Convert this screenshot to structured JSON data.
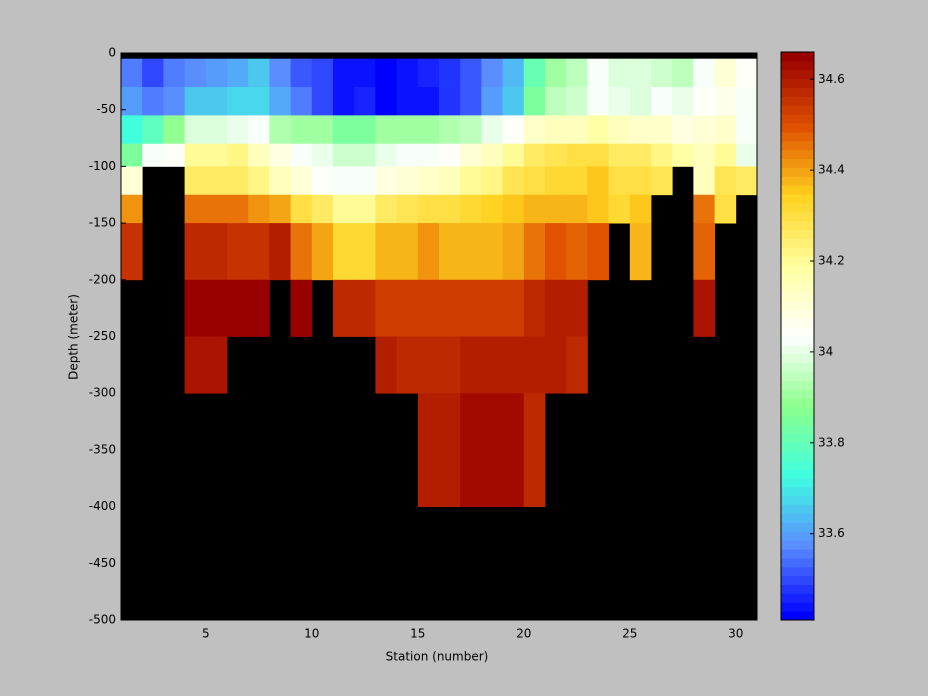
{
  "chart_data": {
    "type": "heatmap",
    "xlabel": "Station (number)",
    "ylabel": "Depth (meter)",
    "xedges": [
      1,
      2,
      3,
      4,
      5,
      6,
      7,
      8,
      9,
      10,
      11,
      12,
      13,
      14,
      15,
      16,
      17,
      18,
      19,
      20,
      21,
      22,
      23,
      24,
      25,
      26,
      27,
      28,
      29,
      30,
      31
    ],
    "yedges": [
      0,
      -5,
      -30,
      -55,
      -80,
      -100,
      -125,
      -150,
      -200,
      -250,
      -300,
      -400,
      -500
    ],
    "z": [
      [
        null,
        null,
        null,
        null,
        null,
        null,
        null,
        null,
        null,
        null,
        null,
        null,
        null,
        null,
        null,
        null,
        null,
        null,
        null,
        null,
        null,
        null,
        null,
        null,
        null,
        null,
        null,
        null,
        null,
        null
      ],
      [
        33.55,
        33.5,
        33.55,
        33.58,
        33.6,
        33.62,
        33.65,
        33.58,
        33.52,
        33.5,
        33.44,
        33.44,
        33.42,
        33.43,
        33.45,
        33.48,
        33.52,
        33.58,
        33.64,
        33.82,
        33.9,
        33.95,
        34.02,
        33.98,
        33.98,
        33.96,
        33.94,
        34.02,
        34.1,
        34.05
      ],
      [
        33.6,
        33.55,
        33.58,
        33.65,
        33.65,
        33.68,
        33.68,
        33.62,
        33.55,
        33.5,
        33.44,
        33.45,
        33.42,
        33.43,
        33.44,
        33.48,
        33.52,
        33.6,
        33.66,
        33.85,
        33.95,
        33.96,
        34.02,
        34.0,
        33.98,
        34.02,
        34.0,
        34.05,
        34.06,
        34.02
      ],
      [
        33.74,
        33.8,
        33.88,
        33.98,
        33.98,
        34.0,
        34.02,
        33.93,
        33.9,
        33.9,
        33.85,
        33.85,
        33.9,
        33.9,
        33.9,
        33.92,
        33.95,
        34.0,
        34.05,
        34.12,
        34.15,
        34.15,
        34.18,
        34.15,
        34.12,
        34.12,
        34.08,
        34.1,
        34.12,
        34.02
      ],
      [
        33.85,
        34.02,
        34.05,
        34.2,
        34.2,
        34.22,
        34.15,
        34.08,
        34.02,
        34.0,
        33.96,
        33.96,
        34.0,
        34.02,
        34.02,
        34.05,
        34.1,
        34.15,
        34.2,
        34.25,
        34.28,
        34.3,
        34.3,
        34.25,
        34.25,
        34.22,
        34.18,
        34.15,
        34.2,
        34.0
      ],
      [
        34.1,
        null,
        null,
        34.25,
        34.25,
        34.25,
        34.22,
        34.15,
        34.1,
        34.05,
        34.02,
        34.02,
        34.08,
        34.1,
        34.12,
        34.15,
        34.2,
        34.22,
        34.28,
        34.3,
        34.32,
        34.32,
        34.35,
        34.3,
        34.3,
        34.28,
        null,
        34.15,
        34.28,
        34.25
      ],
      [
        34.42,
        null,
        null,
        34.45,
        34.45,
        34.45,
        34.42,
        34.4,
        34.3,
        34.25,
        34.2,
        34.2,
        34.25,
        34.28,
        34.3,
        34.3,
        34.32,
        34.33,
        34.35,
        34.38,
        34.38,
        34.38,
        34.35,
        34.32,
        34.35,
        null,
        null,
        34.45,
        34.3,
        null
      ],
      [
        34.56,
        null,
        null,
        34.57,
        34.57,
        34.55,
        34.55,
        34.6,
        34.45,
        34.4,
        34.32,
        34.32,
        34.38,
        34.38,
        34.42,
        34.38,
        34.38,
        34.38,
        34.4,
        34.45,
        34.5,
        34.48,
        34.5,
        null,
        34.38,
        null,
        null,
        34.48,
        null,
        null
      ],
      [
        null,
        null,
        null,
        34.65,
        34.65,
        34.65,
        34.65,
        null,
        34.65,
        null,
        34.57,
        34.57,
        34.53,
        34.53,
        34.53,
        34.53,
        34.53,
        34.53,
        34.53,
        34.57,
        34.6,
        34.6,
        null,
        null,
        null,
        null,
        null,
        34.62,
        null,
        null
      ],
      [
        null,
        null,
        null,
        34.62,
        34.62,
        null,
        null,
        null,
        null,
        null,
        null,
        null,
        34.6,
        34.57,
        34.57,
        34.57,
        34.6,
        34.6,
        34.6,
        34.6,
        34.6,
        34.57,
        null,
        null,
        null,
        null,
        null,
        null,
        null,
        null
      ],
      [
        null,
        null,
        null,
        null,
        null,
        null,
        null,
        null,
        null,
        null,
        null,
        null,
        null,
        null,
        34.6,
        34.6,
        34.63,
        34.63,
        34.63,
        34.57,
        null,
        null,
        null,
        null,
        null,
        null,
        null,
        null,
        null,
        null
      ],
      [
        null,
        null,
        null,
        null,
        null,
        null,
        null,
        null,
        null,
        null,
        null,
        null,
        null,
        null,
        null,
        null,
        null,
        null,
        null,
        null,
        null,
        null,
        null,
        null,
        null,
        null,
        null,
        null,
        null,
        null
      ]
    ],
    "xlim": [
      1,
      31
    ],
    "ylim": [
      -500,
      0
    ],
    "xticks": [
      5,
      10,
      15,
      20,
      25,
      30
    ],
    "yticks": [
      0,
      -50,
      -100,
      -150,
      -200,
      -250,
      -300,
      -350,
      -400,
      -450,
      -500
    ],
    "clim": [
      33.41,
      34.66
    ],
    "cticks": [
      33.6,
      33.8,
      34,
      34.2,
      34.4,
      34.6
    ],
    "colormap": [
      "#0000ff",
      "#5a8cff",
      "#3fffe0",
      "#8cff8c",
      "#ffffff",
      "#ffffa0",
      "#ffd21e",
      "#e05000",
      "#990000"
    ],
    "colormap_levels": 64,
    "background": "#000000"
  }
}
